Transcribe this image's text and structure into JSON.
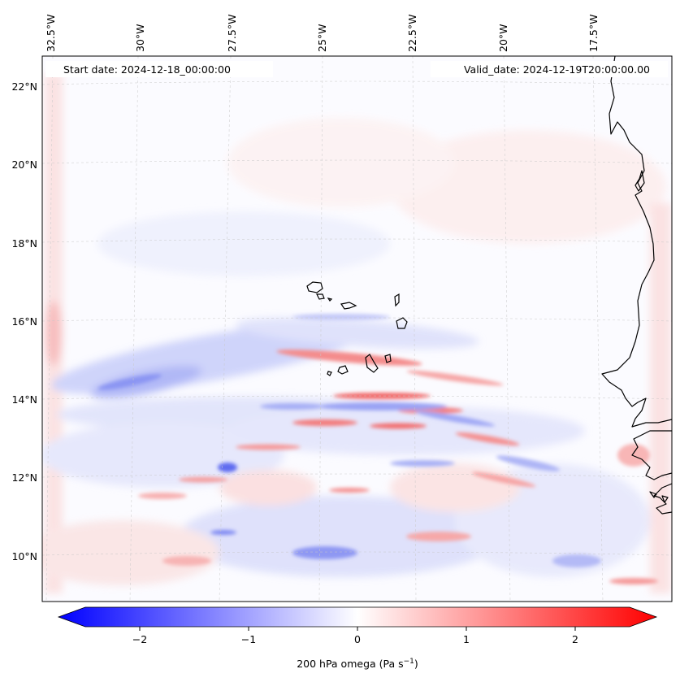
{
  "header": {
    "start_date": "Start date: 2024-12-18_00:00:00",
    "valid_date": "Valid_date: 2024-12-19T20:00:00.00"
  },
  "axes": {
    "lon_labels": [
      "32.5°W",
      "30°W",
      "27.5°W",
      "25°W",
      "22.5°W",
      "20°W",
      "17.5°W"
    ],
    "lat_labels": [
      "22°N",
      "20°N",
      "18°N",
      "16°N",
      "14°N",
      "12°N",
      "10°N"
    ]
  },
  "colorbar": {
    "ticks": [
      "−2",
      "−1",
      "0",
      "1",
      "2"
    ],
    "label_main": "200 hPa omega (Pa s",
    "label_sup": "−1",
    "label_close": ")",
    "min_color": "#0000ff",
    "mid_color": "#ffffff",
    "max_color": "#ff0000"
  },
  "field": {
    "variable": "200 hPa omega",
    "units": "Pa s−1",
    "range": [
      -2.6,
      2.6
    ]
  }
}
